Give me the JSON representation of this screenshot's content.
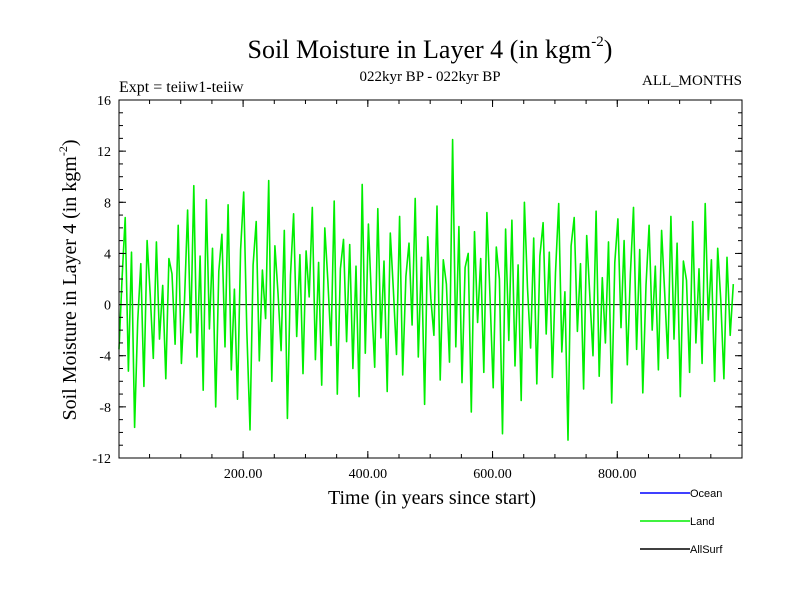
{
  "chart_data": {
    "type": "line",
    "title_main": "Soil Moisture in Layer 4 (in kgm",
    "title_sup": "-2",
    "title_close": ")",
    "subtitle_left": "Expt = teiiw1-teiiw",
    "subtitle_center": "022kyr BP - 022kyr BP",
    "subtitle_right": "ALL_MONTHS",
    "ylabel_main": "Soil Moisture in Layer 4 (in kgm",
    "ylabel_sup": "-2",
    "ylabel_close": ")",
    "xlabel": "Time (in years since start)",
    "xlim": [
      1,
      1000
    ],
    "ylim": [
      -12,
      16
    ],
    "yticks": [
      {
        "value": -12,
        "label": "-12"
      },
      {
        "value": -8,
        "label": "-8"
      },
      {
        "value": -4,
        "label": "-4"
      },
      {
        "value": 0,
        "label": "0"
      },
      {
        "value": 4,
        "label": "4"
      },
      {
        "value": 8,
        "label": "8"
      },
      {
        "value": 12,
        "label": "12"
      },
      {
        "value": 16,
        "label": "16"
      }
    ],
    "xticks": [
      {
        "value": 200,
        "label": "200.00"
      },
      {
        "value": 400,
        "label": "400.00"
      },
      {
        "value": 600,
        "label": "600.00"
      },
      {
        "value": 800,
        "label": "800.00"
      }
    ],
    "zero_line": true,
    "legend_placement": "bottom-right, below plot",
    "legend": [
      {
        "name": "Ocean",
        "color": "#0000ff"
      },
      {
        "name": "Land",
        "color": "#00ee00"
      },
      {
        "name": "AllSurf",
        "color": "#000000"
      }
    ],
    "series": [
      {
        "name": "Land",
        "color": "#00ee00",
        "x_start": 1,
        "x_step": 5,
        "values": [
          -3.5,
          2.1,
          6.8,
          -5.2,
          4.1,
          -9.6,
          -1.3,
          3.2,
          -6.4,
          5.0,
          0.8,
          -4.2,
          4.9,
          -2.7,
          1.5,
          -5.8,
          3.6,
          2.4,
          -3.1,
          6.2,
          -4.6,
          0.3,
          7.4,
          -2.2,
          9.3,
          -4.1,
          3.8,
          -6.7,
          8.2,
          -1.9,
          4.4,
          -8.0,
          2.6,
          5.5,
          -3.3,
          7.8,
          -5.1,
          1.2,
          -7.4,
          4.3,
          8.8,
          -2.0,
          -9.8,
          3.1,
          6.5,
          -4.4,
          2.7,
          -1.1,
          9.7,
          -6.0,
          4.6,
          0.9,
          -3.6,
          5.8,
          -8.9,
          2.3,
          7.1,
          -2.5,
          3.9,
          -5.4,
          4.2,
          0.6,
          7.6,
          -4.3,
          3.3,
          -6.3,
          6.0,
          1.8,
          -3.2,
          8.1,
          -7.0,
          2.8,
          5.1,
          -2.9,
          4.7,
          -5.0,
          3.0,
          -7.2,
          9.4,
          -3.8,
          6.3,
          0.2,
          -4.9,
          7.5,
          -2.6,
          3.4,
          -6.8,
          5.6,
          1.1,
          -3.9,
          6.9,
          -5.5,
          2.2,
          4.8,
          -1.6,
          8.3,
          -4.1,
          3.7,
          -7.8,
          5.3,
          0.5,
          -2.4,
          7.7,
          -5.9,
          3.5,
          1.6,
          -4.5,
          12.9,
          -3.3,
          6.1,
          -6.1,
          2.9,
          4.0,
          -8.4,
          5.7,
          -1.4,
          3.6,
          -5.3,
          7.2,
          0.4,
          -6.5,
          4.5,
          2.0,
          -10.1,
          5.9,
          -2.8,
          6.6,
          -4.8,
          3.1,
          -7.5,
          8.0,
          1.3,
          -3.4,
          5.2,
          -6.2,
          3.8,
          6.4,
          -2.3,
          4.1,
          -5.7,
          2.5,
          7.9,
          -3.7,
          1.0,
          -10.6,
          4.6,
          6.8,
          -2.1,
          3.2,
          -6.6,
          5.4,
          0.7,
          -4.0,
          7.3,
          -5.6,
          2.1,
          -3.0,
          4.9,
          -7.7,
          3.3,
          6.7,
          -1.8,
          5.0,
          -4.7,
          2.4,
          7.6,
          -3.5,
          4.3,
          -6.9,
          1.5,
          6.2,
          -2.0,
          3.0,
          -5.1,
          5.8,
          0.9,
          -4.2,
          6.9,
          -2.7,
          4.8,
          -7.2,
          3.4,
          1.9,
          -5.3,
          6.5,
          -3.0,
          2.8,
          -4.6,
          7.9,
          -1.2,
          3.5,
          -6.0,
          4.4,
          0.3,
          -5.8,
          3.7,
          -2.4,
          1.6
        ]
      }
    ]
  }
}
